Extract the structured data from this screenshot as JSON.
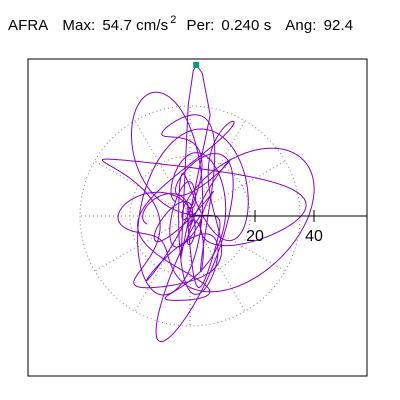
{
  "header": {
    "station": "AFRA",
    "max_label": "Max:",
    "max_value": "54.7 cm/s",
    "max_exponent": "2",
    "period_label": "Per:",
    "period_value": "0.240 s",
    "angle_label": "Ang:",
    "angle_value": "92.4"
  },
  "chart_data": {
    "type": "line",
    "title": "",
    "description_kind": "particle-motion polar plot",
    "ring_ticks": [
      {
        "value": 20,
        "label": "20"
      },
      {
        "value": 40,
        "label": "40"
      }
    ],
    "axes_range": {
      "x": [
        -55,
        60
      ],
      "y": [
        -55,
        55
      ]
    },
    "max_marker": {
      "x": 2.3,
      "y": 54.7
    },
    "colors": {
      "trace": "#8800cc",
      "marker": "#0a9b6e",
      "ring": "#7f7f7f",
      "axis": "#000000",
      "frame": "#000000"
    }
  }
}
